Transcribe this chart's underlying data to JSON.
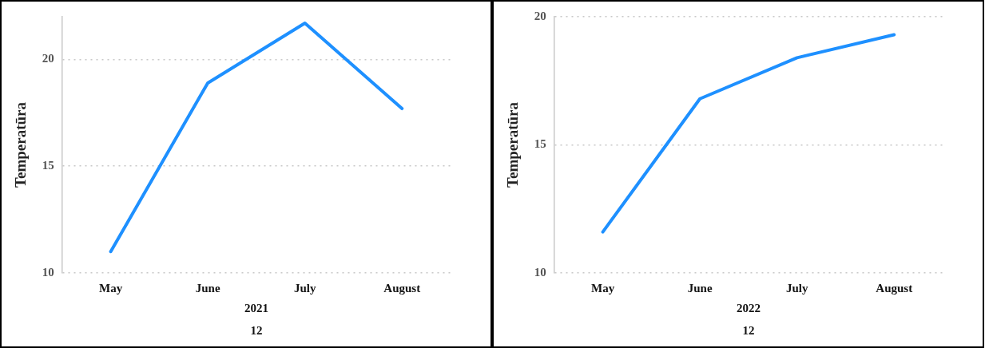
{
  "chart_data": [
    {
      "type": "line",
      "ylabel": "Temperatūra",
      "categories": [
        "May",
        "June",
        "July",
        "August"
      ],
      "series": [
        {
          "color": "#1e90ff",
          "values": [
            11.0,
            18.9,
            21.7,
            17.7
          ]
        }
      ],
      "ylim": [
        10,
        22
      ],
      "yticks": [
        10,
        15,
        20
      ],
      "grid": "y",
      "legend": false,
      "marker": "none",
      "line_style": "solid",
      "annotations": [
        "2021",
        "12"
      ]
    },
    {
      "type": "line",
      "ylabel": "Temperatūra",
      "categories": [
        "May",
        "June",
        "July",
        "August"
      ],
      "series": [
        {
          "color": "#1e90ff",
          "values": [
            11.6,
            16.8,
            18.4,
            19.3
          ]
        }
      ],
      "ylim": [
        10,
        20
      ],
      "yticks": [
        10,
        15,
        20
      ],
      "grid": "y",
      "legend": false,
      "marker": "none",
      "line_style": "solid",
      "annotations": [
        "2022",
        "12"
      ]
    }
  ]
}
